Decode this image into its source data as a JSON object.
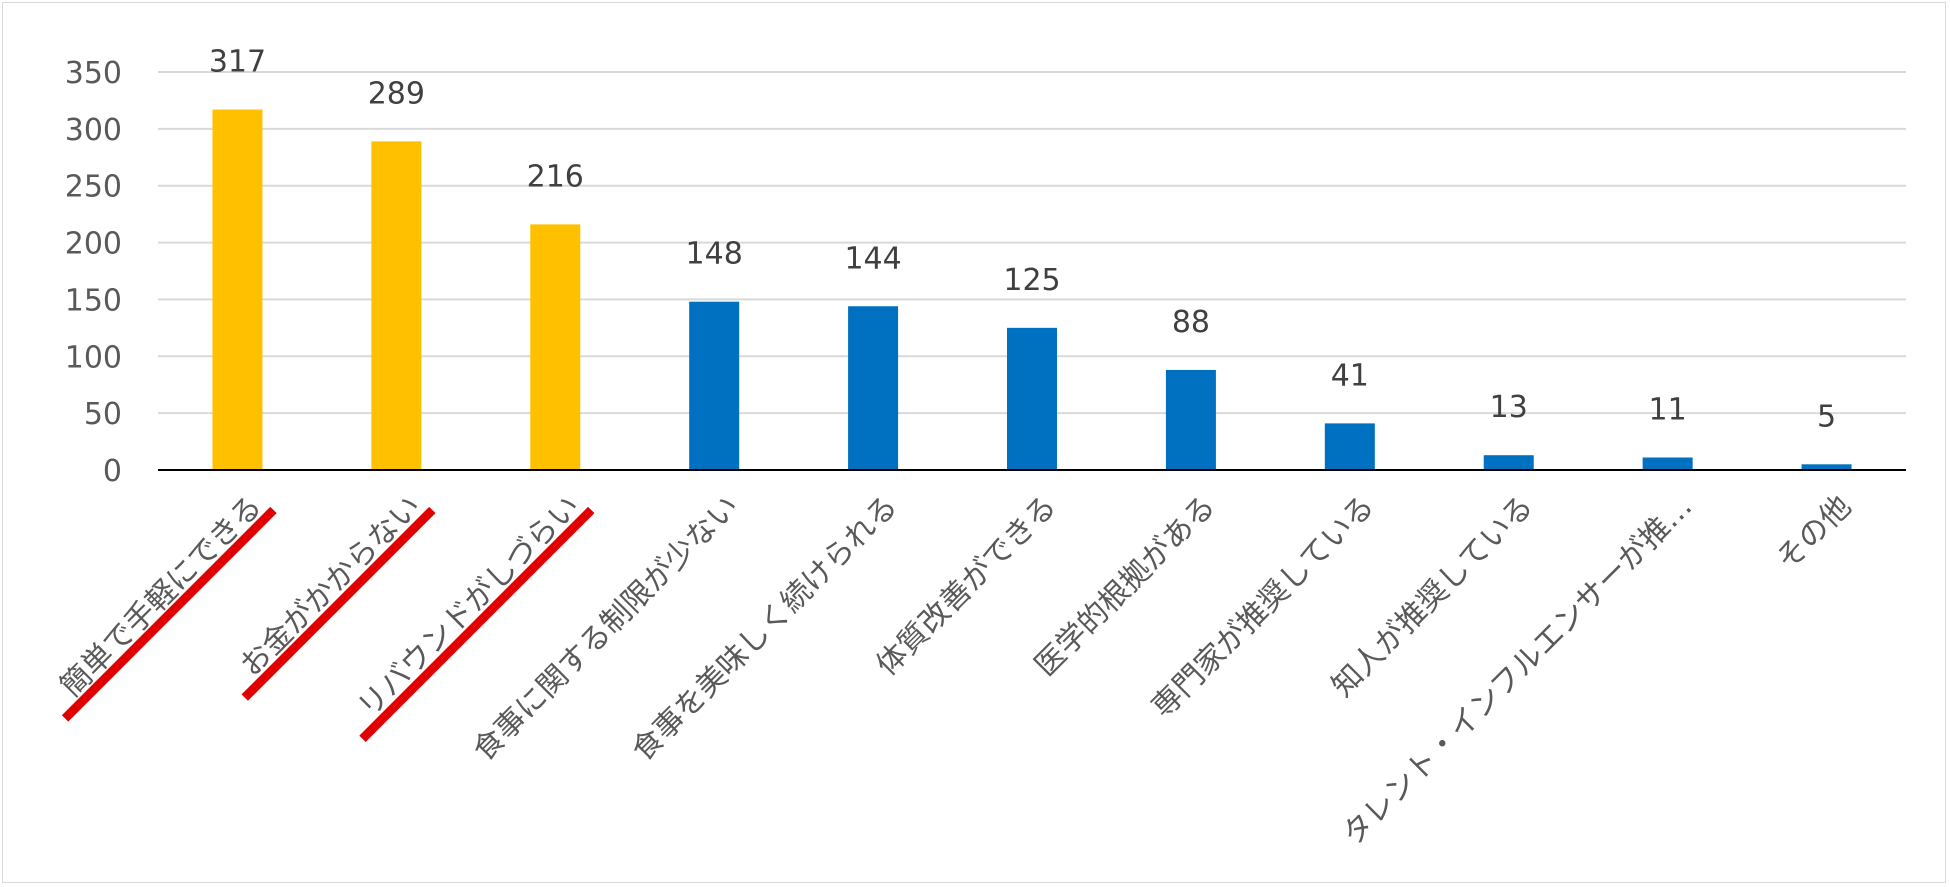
{
  "chart_data": {
    "type": "bar",
    "categories": [
      "簡単で手軽にできる",
      "お金がかからない",
      "リバウンドがしづらい",
      "食事に関する制限が少ない",
      "食事を美味しく続けられる",
      "体質改善ができる",
      "医学的根拠がある",
      "専門家が推奨している",
      "知人が推奨している",
      "タレント・インフルエンサーが推…",
      "その他"
    ],
    "values": [
      317,
      289,
      216,
      148,
      144,
      125,
      88,
      41,
      13,
      11,
      5
    ],
    "data_labels": [
      "317",
      "289",
      "216",
      "148",
      "144",
      "125",
      "88",
      "41",
      "13",
      "11",
      "5"
    ],
    "bar_colors": [
      "#FFC000",
      "#FFC000",
      "#FFC000",
      "#0070C0",
      "#0070C0",
      "#0070C0",
      "#0070C0",
      "#0070C0",
      "#0070C0",
      "#0070C0",
      "#0070C0"
    ],
    "highlight_underline": [
      true,
      true,
      true,
      false,
      false,
      false,
      false,
      false,
      false,
      false,
      false
    ],
    "underline_color": "#E00000",
    "ylim": [
      0,
      350
    ],
    "yticks": [
      "0",
      "50",
      "100",
      "150",
      "200",
      "250",
      "300",
      "350"
    ],
    "grid": true,
    "gridline_color": "#D9D9D9",
    "axis_color": "#000000"
  }
}
